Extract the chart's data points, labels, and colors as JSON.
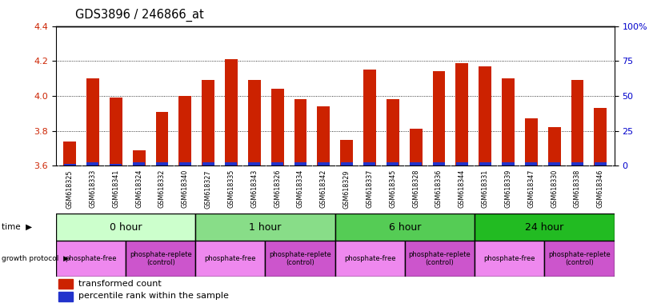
{
  "title": "GDS3896 / 246866_at",
  "samples": [
    "GSM618325",
    "GSM618333",
    "GSM618341",
    "GSM618324",
    "GSM618332",
    "GSM618340",
    "GSM618327",
    "GSM618335",
    "GSM618343",
    "GSM618326",
    "GSM618334",
    "GSM618342",
    "GSM618329",
    "GSM618337",
    "GSM618345",
    "GSM618328",
    "GSM618336",
    "GSM618344",
    "GSM618331",
    "GSM618339",
    "GSM618347",
    "GSM618330",
    "GSM618338",
    "GSM618346"
  ],
  "red_values": [
    3.74,
    4.1,
    3.99,
    3.69,
    3.91,
    4.0,
    4.09,
    4.21,
    4.09,
    4.04,
    3.98,
    3.94,
    3.75,
    4.15,
    3.98,
    3.81,
    4.14,
    4.19,
    4.17,
    4.1,
    3.87,
    3.82,
    4.09,
    3.93
  ],
  "blue_heights": [
    0.012,
    0.018,
    0.01,
    0.022,
    0.018,
    0.022,
    0.018,
    0.02,
    0.018,
    0.018,
    0.018,
    0.018,
    0.018,
    0.018,
    0.018,
    0.02,
    0.018,
    0.02,
    0.018,
    0.02,
    0.018,
    0.018,
    0.02,
    0.018
  ],
  "ylim": [
    3.6,
    4.4
  ],
  "yticks": [
    3.6,
    3.8,
    4.0,
    4.2,
    4.4
  ],
  "right_yticks": [
    0,
    25,
    50,
    75,
    100
  ],
  "right_ytick_labels": [
    "0",
    "25",
    "50",
    "75",
    "100%"
  ],
  "time_groups": [
    {
      "label": "0 hour",
      "start": 0,
      "end": 6,
      "color": "#ccffcc"
    },
    {
      "label": "1 hour",
      "start": 6,
      "end": 12,
      "color": "#88dd88"
    },
    {
      "label": "6 hour",
      "start": 12,
      "end": 18,
      "color": "#55cc55"
    },
    {
      "label": "24 hour",
      "start": 18,
      "end": 24,
      "color": "#22bb22"
    }
  ],
  "protocol_groups": [
    {
      "label": "phosphate-free",
      "start": 0,
      "end": 3,
      "color": "#ee88ee"
    },
    {
      "label": "phosphate-replete\n(control)",
      "start": 3,
      "end": 6,
      "color": "#cc55cc"
    },
    {
      "label": "phosphate-free",
      "start": 6,
      "end": 9,
      "color": "#ee88ee"
    },
    {
      "label": "phosphate-replete\n(control)",
      "start": 9,
      "end": 12,
      "color": "#cc55cc"
    },
    {
      "label": "phosphate-free",
      "start": 12,
      "end": 15,
      "color": "#ee88ee"
    },
    {
      "label": "phosphate-replete\n(control)",
      "start": 15,
      "end": 18,
      "color": "#cc55cc"
    },
    {
      "label": "phosphate-free",
      "start": 18,
      "end": 21,
      "color": "#ee88ee"
    },
    {
      "label": "phosphate-replete\n(control)",
      "start": 21,
      "end": 24,
      "color": "#cc55cc"
    }
  ],
  "bar_color_red": "#cc2200",
  "bar_color_blue": "#2233cc",
  "bar_width": 0.55,
  "base_value": 3.6,
  "background_color": "#ffffff",
  "label_row_color": "#cccccc"
}
